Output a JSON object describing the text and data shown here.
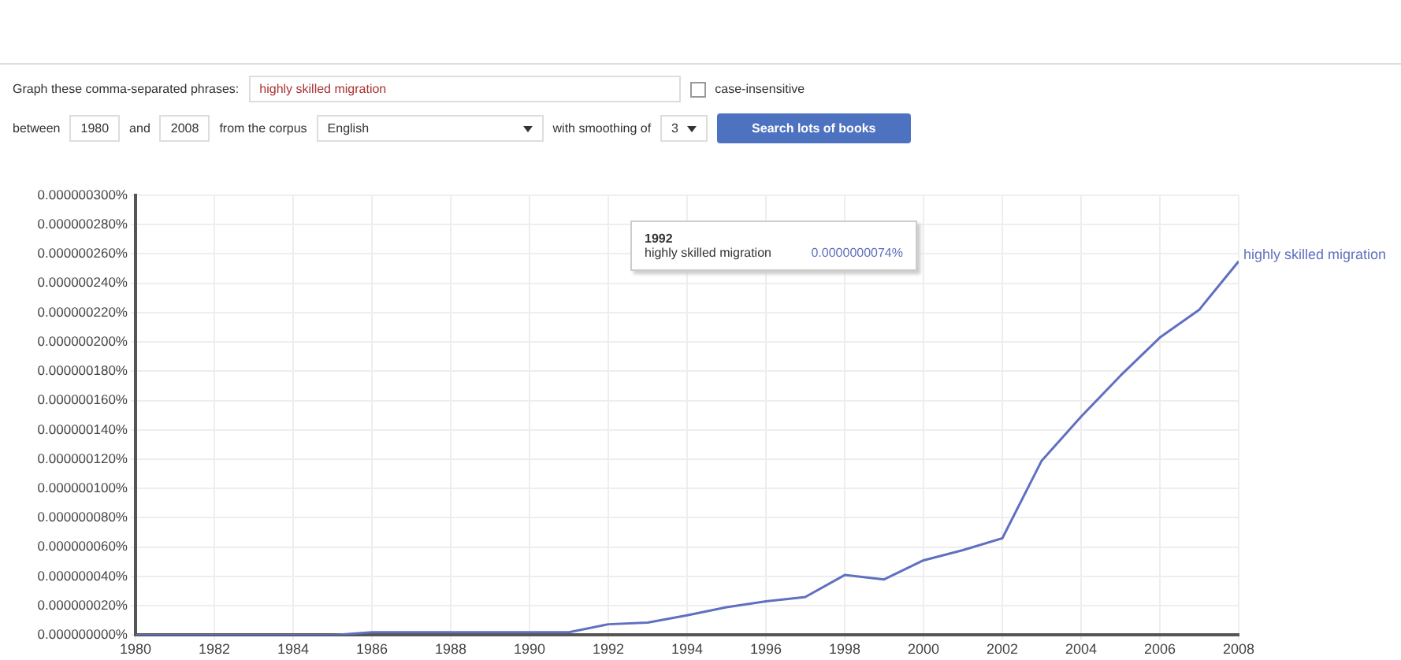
{
  "chart_data": {
    "type": "line",
    "x": [
      1980,
      1981,
      1982,
      1983,
      1984,
      1985,
      1986,
      1987,
      1988,
      1989,
      1990,
      1991,
      1992,
      1993,
      1994,
      1995,
      1996,
      1997,
      1998,
      1999,
      2000,
      2001,
      2002,
      2003,
      2004,
      2005,
      2006,
      2007,
      2008
    ],
    "series": [
      {
        "name": "highly skilled migration",
        "color": "#6070c0",
        "values": [
          0,
          0,
          0,
          0,
          0,
          0,
          2e-09,
          2e-09,
          2e-09,
          2e-09,
          2e-09,
          2e-09,
          7.4e-09,
          8.5e-09,
          1.35e-08,
          1.9e-08,
          2.3e-08,
          2.6e-08,
          4.1e-08,
          3.8e-08,
          5.1e-08,
          5.8e-08,
          6.6e-08,
          1.19e-07,
          1.49e-07,
          1.77e-07,
          2.03e-07,
          2.22e-07,
          2.55e-07
        ]
      }
    ],
    "xlim": [
      1980,
      2008
    ],
    "xticks": [
      1980,
      1982,
      1984,
      1986,
      1988,
      1990,
      1992,
      1994,
      1996,
      1998,
      2000,
      2002,
      2004,
      2006,
      2008
    ],
    "ylim": [
      0,
      3e-07
    ],
    "yticks": [
      {
        "value": 0,
        "label": "0.000000000%"
      },
      {
        "value": 2e-08,
        "label": "0.000000020%"
      },
      {
        "value": 4e-08,
        "label": "0.000000040%"
      },
      {
        "value": 6e-08,
        "label": "0.000000060%"
      },
      {
        "value": 8e-08,
        "label": "0.000000080%"
      },
      {
        "value": 1e-07,
        "label": "0.000000100%"
      },
      {
        "value": 1.2e-07,
        "label": "0.000000120%"
      },
      {
        "value": 1.4e-07,
        "label": "0.000000140%"
      },
      {
        "value": 1.6e-07,
        "label": "0.000000160%"
      },
      {
        "value": 1.8e-07,
        "label": "0.000000180%"
      },
      {
        "value": 2e-07,
        "label": "0.000000200%"
      },
      {
        "value": 2.2e-07,
        "label": "0.000000220%"
      },
      {
        "value": 2.4e-07,
        "label": "0.000000240%"
      },
      {
        "value": 2.6e-07,
        "label": "0.000000260%"
      },
      {
        "value": 2.8e-07,
        "label": "0.000000280%"
      },
      {
        "value": 3e-07,
        "label": "0.000000300%"
      }
    ],
    "grid": true,
    "legend": false,
    "marker": "none",
    "line_style": "solid",
    "annotations": [
      "Graph these comma-separated phrases:",
      "highly skilled migration",
      "case-insensitive",
      "between",
      "1980",
      "and",
      "2008",
      "from the corpus",
      "English",
      "with smoothing of",
      "3",
      "Search lots of books",
      "1992",
      "0.0000000074%"
    ]
  }
}
